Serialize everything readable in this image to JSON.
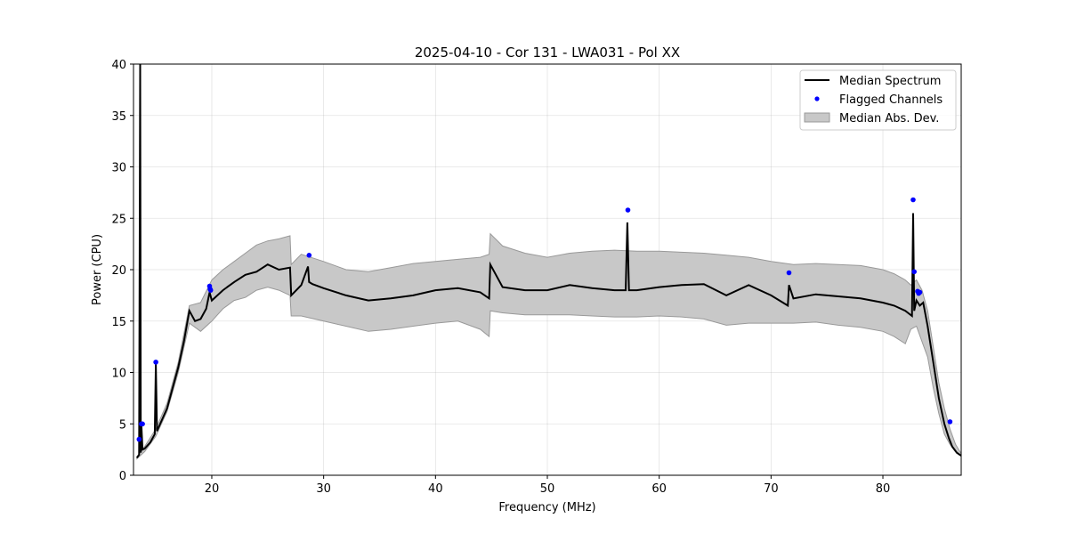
{
  "chart_data": {
    "type": "line",
    "title": "2025-04-10 - Cor 131 - LWA031 - Pol XX",
    "xlabel": "Frequency (MHz)",
    "ylabel": "Power (CPU)",
    "xlim": [
      13.0,
      87.0
    ],
    "ylim": [
      0,
      40
    ],
    "x_ticks": [
      20,
      30,
      40,
      50,
      60,
      70,
      80
    ],
    "y_ticks": [
      0,
      5,
      10,
      15,
      20,
      25,
      30,
      35,
      40
    ],
    "grid": true,
    "legend_position": "top-right",
    "colors": {
      "median": "#000000",
      "flagged": "#0000ff",
      "mad_fill": "#c8c8c8",
      "mad_edge": "#999999"
    },
    "series": [
      {
        "name": "Median Spectrum",
        "kind": "line",
        "x": [
          13.3,
          13.5,
          13.6,
          13.65,
          13.7,
          13.8,
          14.0,
          14.5,
          14.9,
          15.0,
          15.1,
          15.3,
          16.0,
          17.0,
          17.5,
          18.0,
          18.5,
          19.0,
          19.5,
          19.8,
          20.0,
          21.0,
          22.0,
          23.0,
          24.0,
          25.0,
          26.0,
          27.0,
          27.1,
          28.0,
          28.6,
          28.7,
          29.0,
          30.0,
          32.0,
          34.0,
          36.0,
          38.0,
          40.0,
          42.0,
          44.0,
          44.8,
          44.9,
          46.0,
          48.0,
          50.0,
          52.0,
          54.0,
          56.0,
          57.0,
          57.15,
          57.3,
          58.0,
          60.0,
          62.0,
          64.0,
          66.0,
          68.0,
          70.0,
          71.5,
          71.6,
          72.0,
          74.0,
          76.0,
          78.0,
          80.0,
          81.0,
          82.0,
          82.6,
          82.7,
          82.8,
          83.0,
          83.3,
          83.6,
          84.0,
          84.5,
          85.0,
          85.5,
          85.9,
          86.2,
          86.6,
          87.0
        ],
        "y": [
          1.7,
          2.0,
          40.0,
          2.2,
          5.0,
          2.5,
          2.6,
          3.2,
          4.0,
          10.8,
          4.3,
          4.8,
          6.5,
          10.5,
          13.0,
          16.0,
          15.0,
          15.2,
          16.2,
          17.8,
          17.0,
          18.0,
          18.8,
          19.5,
          19.8,
          20.5,
          20.0,
          20.2,
          17.5,
          18.5,
          20.3,
          18.8,
          18.6,
          18.2,
          17.5,
          17.0,
          17.2,
          17.5,
          18.0,
          18.2,
          17.8,
          17.2,
          20.5,
          18.3,
          18.0,
          18.0,
          18.5,
          18.2,
          18.0,
          18.0,
          24.6,
          18.0,
          18.0,
          18.3,
          18.5,
          18.6,
          17.5,
          18.5,
          17.5,
          16.5,
          18.5,
          17.2,
          17.6,
          17.4,
          17.2,
          16.8,
          16.5,
          16.0,
          15.5,
          25.5,
          16.0,
          17.0,
          16.5,
          16.8,
          14.5,
          11.0,
          7.5,
          5.0,
          3.6,
          2.8,
          2.2,
          1.9
        ]
      },
      {
        "name": "Flagged Channels",
        "kind": "scatter",
        "x": [
          13.5,
          13.7,
          13.8,
          15.0,
          19.8,
          19.85,
          19.9,
          28.7,
          57.2,
          71.6,
          82.7,
          82.8,
          83.1,
          83.2,
          83.3,
          86.0
        ],
        "y": [
          3.5,
          5.0,
          5.0,
          11.0,
          18.4,
          18.1,
          18.0,
          21.4,
          25.8,
          19.7,
          26.8,
          19.8,
          17.9,
          17.7,
          17.8,
          5.2
        ]
      },
      {
        "name": "Median Abs. Dev.",
        "kind": "band",
        "x": [
          13.3,
          14.0,
          15.0,
          16.0,
          17.0,
          18.0,
          19.0,
          20.0,
          21.0,
          22.0,
          23.0,
          24.0,
          25.0,
          26.0,
          27.0,
          27.1,
          28.0,
          30.0,
          32.0,
          34.0,
          36.0,
          38.0,
          40.0,
          42.0,
          44.0,
          44.8,
          44.9,
          46.0,
          48.0,
          50.0,
          52.0,
          54.0,
          56.0,
          58.0,
          60.0,
          62.0,
          64.0,
          66.0,
          68.0,
          70.0,
          72.0,
          74.0,
          76.0,
          78.0,
          80.0,
          81.0,
          82.0,
          82.5,
          83.0,
          83.5,
          84.0,
          84.5,
          85.0,
          85.5,
          86.0,
          86.5,
          87.0
        ],
        "lower": [
          1.6,
          2.3,
          3.8,
          6.2,
          10.0,
          14.8,
          14.0,
          15.0,
          16.2,
          17.0,
          17.3,
          18.0,
          18.3,
          18.0,
          17.5,
          15.5,
          15.5,
          15.0,
          14.5,
          14.0,
          14.2,
          14.5,
          14.8,
          15.0,
          14.2,
          13.5,
          16.0,
          15.8,
          15.6,
          15.6,
          15.6,
          15.5,
          15.4,
          15.4,
          15.5,
          15.4,
          15.2,
          14.6,
          14.8,
          14.8,
          14.8,
          14.9,
          14.6,
          14.4,
          14.0,
          13.5,
          12.8,
          14.2,
          14.5,
          13.0,
          11.5,
          8.5,
          6.0,
          4.0,
          3.0,
          2.3,
          1.9
        ],
        "upper": [
          1.8,
          2.8,
          4.5,
          7.0,
          11.0,
          16.5,
          16.8,
          19.0,
          20.0,
          20.8,
          21.6,
          22.4,
          22.8,
          23.0,
          23.3,
          20.5,
          21.5,
          20.8,
          20.0,
          19.8,
          20.2,
          20.6,
          20.8,
          21.0,
          21.2,
          21.5,
          23.5,
          22.3,
          21.6,
          21.2,
          21.6,
          21.8,
          21.9,
          21.8,
          21.8,
          21.7,
          21.6,
          21.4,
          21.2,
          20.8,
          20.5,
          20.6,
          20.5,
          20.4,
          20.0,
          19.6,
          19.0,
          18.5,
          19.0,
          18.0,
          16.0,
          12.5,
          9.0,
          6.5,
          4.5,
          3.0,
          2.1
        ]
      }
    ]
  }
}
